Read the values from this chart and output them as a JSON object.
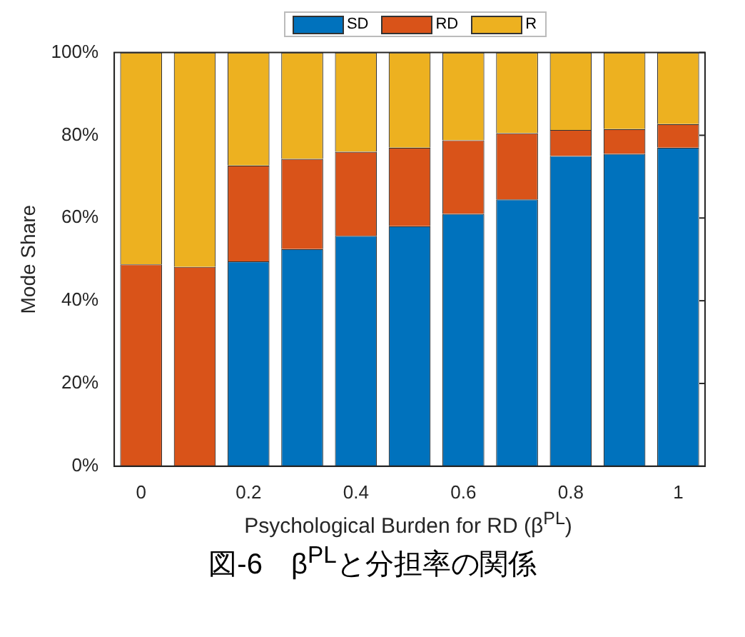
{
  "chart_data": {
    "type": "bar",
    "stacked": true,
    "ylabel": "Mode Share",
    "xlabel": "Psychological Burden for RD (β$^{PL}$)",
    "title": "図-6　β$^{PL}$と分担率の関係",
    "categories": [
      "0",
      null,
      "0.2",
      null,
      "0.4",
      null,
      "0.6",
      null,
      "0.8",
      null,
      "1"
    ],
    "series": [
      {
        "name": "SD",
        "color": "#0072bd",
        "values": [
          0,
          0,
          49.5,
          52.5,
          55.7,
          58,
          61,
          64.5,
          75,
          75.5,
          77
        ]
      },
      {
        "name": "RD",
        "color": "#d95319",
        "values": [
          48.8,
          48.2,
          23.2,
          21.8,
          20.3,
          19,
          17.8,
          16,
          6.3,
          6,
          5.7
        ]
      },
      {
        "name": "R",
        "color": "#edb120",
        "values": [
          51.2,
          51.8,
          27.3,
          25.7,
          24,
          23,
          21.2,
          19.5,
          18.7,
          18.5,
          17.3
        ]
      }
    ],
    "ylim": [
      0,
      100
    ],
    "yticks": [
      {
        "value": 0,
        "label": "0%"
      },
      {
        "value": 20,
        "label": "20%"
      },
      {
        "value": 40,
        "label": "40%"
      },
      {
        "value": 60,
        "label": "60%"
      },
      {
        "value": 80,
        "label": "80%"
      },
      {
        "value": 100,
        "label": "100%"
      }
    ],
    "grid": false,
    "legend": "top"
  }
}
